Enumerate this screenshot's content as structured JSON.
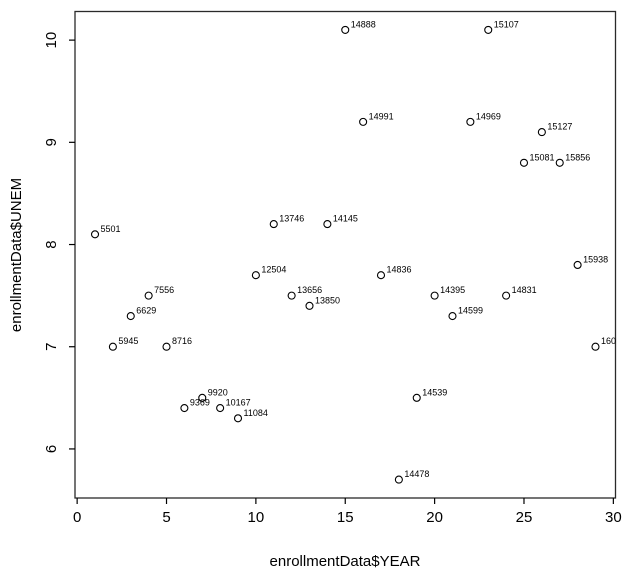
{
  "figure": {
    "background_color": "#ffffff",
    "foreground_color": "#000000",
    "border_color": "#2a2a2a"
  },
  "chart_data": {
    "type": "scatter",
    "title": "",
    "xlabel": "enrollmentData$YEAR",
    "ylabel": "enrollmentData$UNEM",
    "x_ticks": [
      "0",
      "5",
      "10",
      "15",
      "20",
      "25",
      "30"
    ],
    "y_ticks": [
      "6",
      "7",
      "8",
      "9",
      "10"
    ],
    "xlim": [
      -0.12,
      30.12
    ],
    "ylim": [
      5.52,
      10.28
    ],
    "grid": false,
    "legend": "none",
    "point_style": "open-circle",
    "points": [
      {
        "x": 1,
        "y": 8.1,
        "label": "5501"
      },
      {
        "x": 2,
        "y": 7.0,
        "label": "5945"
      },
      {
        "x": 3,
        "y": 7.3,
        "label": "6629"
      },
      {
        "x": 4,
        "y": 7.5,
        "label": "7556"
      },
      {
        "x": 5,
        "y": 7.0,
        "label": "8716"
      },
      {
        "x": 6,
        "y": 6.4,
        "label": "9369"
      },
      {
        "x": 7,
        "y": 6.5,
        "label": "9920"
      },
      {
        "x": 8,
        "y": 6.4,
        "label": "10167"
      },
      {
        "x": 9,
        "y": 6.3,
        "label": "11084"
      },
      {
        "x": 10,
        "y": 7.7,
        "label": "12504"
      },
      {
        "x": 11,
        "y": 8.2,
        "label": "13746"
      },
      {
        "x": 12,
        "y": 7.5,
        "label": "13656"
      },
      {
        "x": 13,
        "y": 7.4,
        "label": "13850"
      },
      {
        "x": 14,
        "y": 8.2,
        "label": "14145"
      },
      {
        "x": 15,
        "y": 10.1,
        "label": "14888"
      },
      {
        "x": 16,
        "y": 9.2,
        "label": "14991"
      },
      {
        "x": 17,
        "y": 7.7,
        "label": "14836"
      },
      {
        "x": 18,
        "y": 5.7,
        "label": "14478"
      },
      {
        "x": 19,
        "y": 6.5,
        "label": "14539"
      },
      {
        "x": 20,
        "y": 7.5,
        "label": "14395"
      },
      {
        "x": 21,
        "y": 7.3,
        "label": "14599"
      },
      {
        "x": 22,
        "y": 9.2,
        "label": "14969"
      },
      {
        "x": 23,
        "y": 10.1,
        "label": "15107"
      },
      {
        "x": 24,
        "y": 7.5,
        "label": "14831"
      },
      {
        "x": 25,
        "y": 8.8,
        "label": "15081"
      },
      {
        "x": 26,
        "y": 9.1,
        "label": "15127"
      },
      {
        "x": 27,
        "y": 8.8,
        "label": "15856"
      },
      {
        "x": 28,
        "y": 7.8,
        "label": "15938"
      },
      {
        "x": 29,
        "y": 7.0,
        "label": "160"
      }
    ]
  }
}
